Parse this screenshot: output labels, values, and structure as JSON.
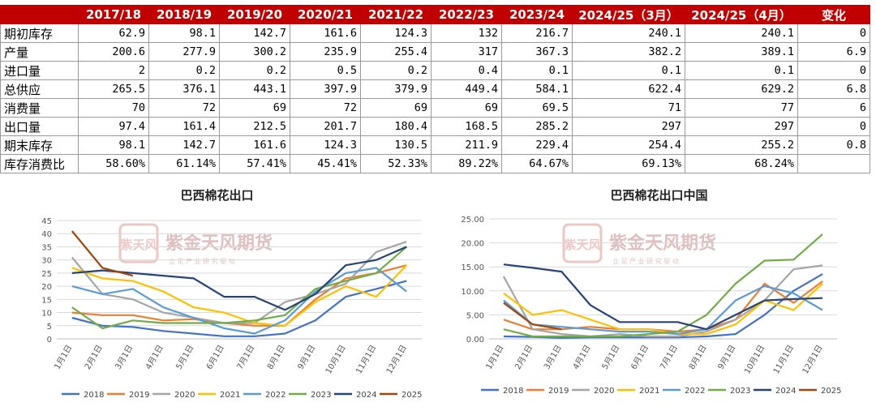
{
  "table": {
    "headers": [
      "",
      "2017/18",
      "2018/19",
      "2019/20",
      "2020/21",
      "2021/22",
      "2022/23",
      "2023/24",
      "2024/25（3月）",
      "2024/25（4月）",
      "变化"
    ],
    "rows": [
      {
        "label": "期初库存",
        "values": [
          "62.9",
          "98.1",
          "142.7",
          "161.6",
          "124.3",
          "132",
          "216.7",
          "240.1",
          "240.1",
          "0"
        ]
      },
      {
        "label": "产量",
        "values": [
          "200.6",
          "277.9",
          "300.2",
          "235.9",
          "255.4",
          "317",
          "367.3",
          "382.2",
          "389.1",
          "6.9"
        ]
      },
      {
        "label": "进口量",
        "values": [
          "2",
          "0.2",
          "0.2",
          "0.5",
          "0.2",
          "0.4",
          "0.1",
          "0.1",
          "0.1",
          "0"
        ]
      },
      {
        "label": "总供应",
        "values": [
          "265.5",
          "376.1",
          "443.1",
          "397.9",
          "379.9",
          "449.4",
          "584.1",
          "622.4",
          "629.2",
          "6.8"
        ]
      },
      {
        "label": "消费量",
        "values": [
          "70",
          "72",
          "69",
          "72",
          "69",
          "69",
          "69.5",
          "71",
          "77",
          "6"
        ]
      },
      {
        "label": "出口量",
        "values": [
          "97.4",
          "161.4",
          "212.5",
          "201.7",
          "180.4",
          "168.5",
          "285.2",
          "297",
          "297",
          "0"
        ]
      },
      {
        "label": "期末库存",
        "values": [
          "98.1",
          "142.7",
          "161.6",
          "124.3",
          "130.5",
          "211.9",
          "229.4",
          "254.4",
          "255.2",
          "0.8"
        ]
      },
      {
        "label": "库存消费比",
        "values": [
          "58.60%",
          "61.14%",
          "57.41%",
          "45.41%",
          "52.33%",
          "89.22%",
          "64.67%",
          "69.13%",
          "68.24%",
          ""
        ]
      }
    ]
  },
  "watermark": {
    "brand": "紫金天风期货",
    "seal": "紫天风",
    "slogan": "立 足 产 业   研 究 驱 动"
  },
  "chart_data": [
    {
      "type": "line",
      "title": "巴西棉花出口",
      "categories": [
        "1月1日",
        "2月1日",
        "3月1日",
        "4月1日",
        "5月1日",
        "6月1日",
        "7月1日",
        "8月1日",
        "9月1日",
        "10月1日",
        "11月1日",
        "12月1日"
      ],
      "ylim": [
        0,
        45
      ],
      "yticks": [
        "0",
        "5",
        "10",
        "15",
        "20",
        "25",
        "30",
        "35",
        "40",
        "45"
      ],
      "legend_position": "bottom",
      "series": [
        {
          "name": "2018",
          "color": "#4472c4",
          "values": [
            8,
            5,
            4.5,
            3,
            2,
            1,
            1,
            2,
            7,
            16,
            19,
            22
          ]
        },
        {
          "name": "2019",
          "color": "#ed7d31",
          "values": [
            10,
            9,
            9,
            7,
            7.5,
            6,
            5,
            5,
            15,
            23,
            25,
            28
          ]
        },
        {
          "name": "2020",
          "color": "#a5a5a5",
          "values": [
            31,
            17,
            15,
            10,
            8,
            6,
            6,
            14,
            17,
            21,
            33,
            37
          ]
        },
        {
          "name": "2021",
          "color": "#ffc000",
          "values": [
            27,
            23,
            22,
            18,
            12,
            10,
            6,
            5,
            14,
            20,
            16,
            28
          ]
        },
        {
          "name": "2022",
          "color": "#5b9bd5",
          "values": [
            20,
            17,
            19,
            12,
            8,
            4,
            2,
            7,
            18,
            25,
            27,
            18
          ]
        },
        {
          "name": "2023",
          "color": "#70ad47",
          "values": [
            12,
            4,
            7,
            6,
            6,
            6,
            7,
            9,
            19,
            22,
            25,
            35
          ]
        },
        {
          "name": "2024",
          "color": "#264478",
          "values": [
            25,
            26,
            25,
            24,
            23,
            16,
            16,
            11,
            17,
            28,
            30,
            35
          ]
        },
        {
          "name": "2025",
          "color": "#9e480e",
          "values": [
            41,
            27,
            24,
            null,
            null,
            null,
            null,
            null,
            null,
            null,
            null,
            null
          ]
        }
      ]
    },
    {
      "type": "line",
      "title": "巴西棉花出口中国",
      "categories": [
        "1月1日",
        "2月1日",
        "3月1日",
        "4月1日",
        "5月1日",
        "6月1日",
        "7月1日",
        "8月1日",
        "9月1日",
        "10月1日",
        "11月1日",
        "12月1日"
      ],
      "ylim": [
        0,
        25
      ],
      "yticks": [
        "0.00",
        "5.00",
        "10.00",
        "15.00",
        "20.00",
        "25.00"
      ],
      "legend_position": "bottom",
      "series": [
        {
          "name": "2018",
          "color": "#4472c4",
          "values": [
            0.5,
            0.4,
            0.2,
            0.3,
            0.3,
            0.3,
            0.3,
            0.5,
            1,
            5,
            10,
            13.5
          ]
        },
        {
          "name": "2019",
          "color": "#ed7d31",
          "values": [
            4,
            2,
            2,
            2.5,
            2,
            2,
            1.5,
            2,
            4,
            11.5,
            7.5,
            12
          ]
        },
        {
          "name": "2020",
          "color": "#a5a5a5",
          "values": [
            13,
            2,
            1,
            0.5,
            1,
            0.5,
            0.5,
            1.5,
            4,
            8,
            14.5,
            15.3
          ]
        },
        {
          "name": "2021",
          "color": "#ffc000",
          "values": [
            9.5,
            5,
            6,
            4,
            2,
            2,
            1,
            1,
            3,
            8,
            6,
            11.5
          ]
        },
        {
          "name": "2022",
          "color": "#5b9bd5",
          "values": [
            8,
            3,
            2.5,
            2,
            1.5,
            1.5,
            1,
            2,
            8,
            11,
            9.5,
            6
          ]
        },
        {
          "name": "2023",
          "color": "#70ad47",
          "values": [
            2,
            0.5,
            0.5,
            0.5,
            0.5,
            1,
            1.5,
            5,
            11.5,
            16.3,
            16.5,
            21.8
          ]
        },
        {
          "name": "2024",
          "color": "#264478",
          "values": [
            15.5,
            14.8,
            14,
            7,
            3.5,
            3.5,
            3.5,
            2,
            5,
            8,
            8.3,
            8.5
          ]
        },
        {
          "name": "2025",
          "color": "#9e480e",
          "values": [
            7.5,
            3,
            2,
            null,
            null,
            null,
            null,
            null,
            null,
            null,
            null,
            null
          ]
        }
      ]
    }
  ]
}
